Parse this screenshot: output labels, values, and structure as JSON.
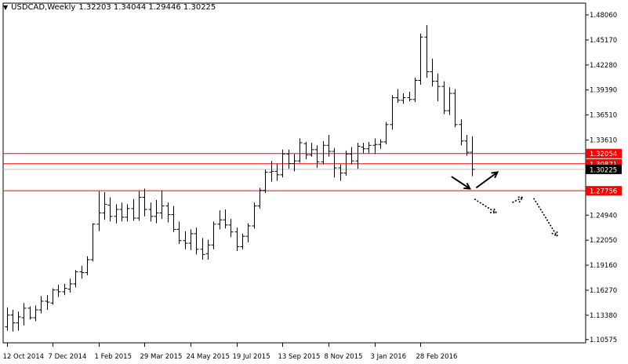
{
  "header": {
    "symbol": "USDCAD,Weekly",
    "ohlc": "1.32203 1.34044 1.29446 1.30225"
  },
  "chart_data": {
    "type": "ohlc-bar",
    "symbol": "USDCAD",
    "timeframe": "Weekly",
    "ylim": [
      1.102,
      1.4942
    ],
    "y_ticks": [
      "1.48060",
      "1.45170",
      "1.42280",
      "1.39390",
      "1.36510",
      "1.33610",
      "1.30720",
      "1.27830",
      "1.24940",
      "1.22050",
      "1.19160",
      "1.16270",
      "1.13380",
      "1.10575"
    ],
    "x_ticks": [
      {
        "label": "12 Oct 2014",
        "bar": 0
      },
      {
        "label": "7 Dec 2014",
        "bar": 8
      },
      {
        "label": "1 Feb 2015",
        "bar": 16
      },
      {
        "label": "29 Mar 2015",
        "bar": 24
      },
      {
        "label": "24 May 2015",
        "bar": 32
      },
      {
        "label": "19 Jul 2015",
        "bar": 40
      },
      {
        "label": "13 Sep 2015",
        "bar": 48
      },
      {
        "label": "8 Nov 2015",
        "bar": 56
      },
      {
        "label": "3 Jan 2016",
        "bar": 64
      },
      {
        "label": "28 Feb 2016",
        "bar": 72
      }
    ],
    "levels": [
      {
        "value": 1.32054,
        "label": "1.32054",
        "color": "#ff0000"
      },
      {
        "value": 1.30871,
        "label": "1.30871",
        "color": "#ff0000"
      },
      {
        "value": 1.27756,
        "label": "1.27756",
        "color": "#ff0000"
      }
    ],
    "current_price": {
      "value": 1.30225,
      "label": "1.30225",
      "line_color": "#c0c0c0"
    },
    "bars": [
      [
        1.1205,
        1.143,
        1.116,
        1.134
      ],
      [
        1.134,
        1.14,
        1.115,
        1.125
      ],
      [
        1.125,
        1.138,
        1.116,
        1.132
      ],
      [
        1.131,
        1.148,
        1.122,
        1.142
      ],
      [
        1.142,
        1.144,
        1.129,
        1.131
      ],
      [
        1.131,
        1.145,
        1.127,
        1.14
      ],
      [
        1.14,
        1.156,
        1.136,
        1.15
      ],
      [
        1.15,
        1.157,
        1.14,
        1.149
      ],
      [
        1.148,
        1.165,
        1.146,
        1.163
      ],
      [
        1.163,
        1.169,
        1.155,
        1.161
      ],
      [
        1.161,
        1.17,
        1.157,
        1.165
      ],
      [
        1.164,
        1.176,
        1.16,
        1.17
      ],
      [
        1.17,
        1.186,
        1.166,
        1.184
      ],
      [
        1.184,
        1.191,
        1.176,
        1.183
      ],
      [
        1.183,
        1.202,
        1.18,
        1.198
      ],
      [
        1.198,
        1.24,
        1.196,
        1.239
      ],
      [
        1.239,
        1.277,
        1.231,
        1.252
      ],
      [
        1.252,
        1.276,
        1.244,
        1.262
      ],
      [
        1.261,
        1.27,
        1.242,
        1.248
      ],
      [
        1.248,
        1.262,
        1.24,
        1.256
      ],
      [
        1.256,
        1.264,
        1.242,
        1.247
      ],
      [
        1.247,
        1.262,
        1.242,
        1.257
      ],
      [
        1.257,
        1.268,
        1.243,
        1.246
      ],
      [
        1.246,
        1.277,
        1.243,
        1.27
      ],
      [
        1.27,
        1.28,
        1.248,
        1.256
      ],
      [
        1.256,
        1.264,
        1.242,
        1.248
      ],
      [
        1.248,
        1.267,
        1.24,
        1.252
      ],
      [
        1.252,
        1.278,
        1.245,
        1.26
      ],
      [
        1.26,
        1.264,
        1.241,
        1.25
      ],
      [
        1.25,
        1.26,
        1.23,
        1.233
      ],
      [
        1.233,
        1.242,
        1.216,
        1.22
      ],
      [
        1.22,
        1.231,
        1.21,
        1.217
      ],
      [
        1.217,
        1.233,
        1.209,
        1.228
      ],
      [
        1.228,
        1.235,
        1.204,
        1.21
      ],
      [
        1.21,
        1.223,
        1.198,
        1.204
      ],
      [
        1.205,
        1.221,
        1.198,
        1.215
      ],
      [
        1.215,
        1.242,
        1.21,
        1.239
      ],
      [
        1.239,
        1.255,
        1.233,
        1.244
      ],
      [
        1.244,
        1.256,
        1.234,
        1.238
      ],
      [
        1.238,
        1.245,
        1.224,
        1.23
      ],
      [
        1.23,
        1.235,
        1.208,
        1.213
      ],
      [
        1.213,
        1.228,
        1.21,
        1.225
      ],
      [
        1.225,
        1.24,
        1.218,
        1.237
      ],
      [
        1.237,
        1.264,
        1.234,
        1.26
      ],
      [
        1.26,
        1.281,
        1.257,
        1.278
      ],
      [
        1.278,
        1.302,
        1.275,
        1.299
      ],
      [
        1.299,
        1.312,
        1.288,
        1.3
      ],
      [
        1.3,
        1.309,
        1.289,
        1.296
      ],
      [
        1.296,
        1.325,
        1.293,
        1.32
      ],
      [
        1.32,
        1.325,
        1.303,
        1.309
      ],
      [
        1.309,
        1.32,
        1.3,
        1.312
      ],
      [
        1.312,
        1.338,
        1.31,
        1.333
      ],
      [
        1.332,
        1.334,
        1.314,
        1.319
      ],
      [
        1.319,
        1.333,
        1.317,
        1.325
      ],
      [
        1.325,
        1.33,
        1.304,
        1.311
      ],
      [
        1.311,
        1.335,
        1.308,
        1.33
      ],
      [
        1.33,
        1.342,
        1.317,
        1.323
      ],
      [
        1.323,
        1.327,
        1.293,
        1.304
      ],
      [
        1.304,
        1.308,
        1.289,
        1.298
      ],
      [
        1.298,
        1.324,
        1.295,
        1.32
      ],
      [
        1.32,
        1.328,
        1.308,
        1.312
      ],
      [
        1.312,
        1.333,
        1.303,
        1.329
      ],
      [
        1.328,
        1.333,
        1.321,
        1.326
      ],
      [
        1.326,
        1.334,
        1.321,
        1.33
      ],
      [
        1.33,
        1.338,
        1.32,
        1.331
      ],
      [
        1.331,
        1.337,
        1.326,
        1.334
      ],
      [
        1.334,
        1.357,
        1.331,
        1.354
      ],
      [
        1.354,
        1.388,
        1.348,
        1.385
      ],
      [
        1.385,
        1.395,
        1.379,
        1.382
      ],
      [
        1.382,
        1.39,
        1.378,
        1.385
      ],
      [
        1.385,
        1.392,
        1.381,
        1.383
      ],
      [
        1.383,
        1.408,
        1.38,
        1.405
      ],
      [
        1.405,
        1.459,
        1.4,
        1.455
      ],
      [
        1.455,
        1.469,
        1.408,
        1.415
      ],
      [
        1.415,
        1.43,
        1.398,
        1.404
      ],
      [
        1.404,
        1.413,
        1.381,
        1.398
      ],
      [
        1.398,
        1.404,
        1.366,
        1.37
      ],
      [
        1.37,
        1.397,
        1.365,
        1.39
      ],
      [
        1.39,
        1.395,
        1.351,
        1.354
      ],
      [
        1.354,
        1.36,
        1.33,
        1.335
      ],
      [
        1.335,
        1.342,
        1.318,
        1.322
      ],
      [
        1.322,
        1.3404,
        1.2945,
        1.3023
      ]
    ],
    "arrows": [
      {
        "style": "solid",
        "from": [
          77.4,
          1.294
        ],
        "to": [
          80.6,
          1.28
        ]
      },
      {
        "style": "solid",
        "from": [
          81.7,
          1.281
        ],
        "to": [
          85.4,
          1.299
        ]
      },
      {
        "style": "dotted",
        "from": [
          81.4,
          1.268
        ],
        "to": [
          85.2,
          1.252
        ]
      },
      {
        "style": "dotted",
        "from": [
          88.0,
          1.264
        ],
        "to": [
          89.8,
          1.27
        ]
      },
      {
        "style": "dotted",
        "from": [
          91.7,
          1.269
        ],
        "to": [
          95.8,
          1.225
        ]
      }
    ]
  }
}
